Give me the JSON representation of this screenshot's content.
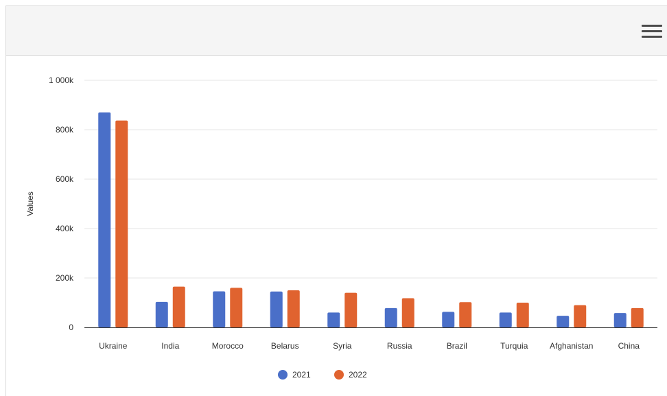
{
  "toolbar": {
    "menu_icon": "hamburger-menu-icon"
  },
  "chart_data": {
    "type": "bar",
    "ylabel": "Values",
    "xlabel": "",
    "ylim": [
      0,
      1000000
    ],
    "yticks": [
      0,
      200000,
      400000,
      600000,
      800000,
      1000000
    ],
    "ytick_labels": [
      "0",
      "200k",
      "400k",
      "600k",
      "800k",
      "1 000k"
    ],
    "categories": [
      "Ukraine",
      "India",
      "Morocco",
      "Belarus",
      "Syria",
      "Russia",
      "Brazil",
      "Turquia",
      "Afghanistan",
      "China"
    ],
    "series": [
      {
        "name": "2021",
        "color": "#4a6fc8",
        "values": [
          870000,
          103000,
          146000,
          145000,
          60000,
          78000,
          63000,
          60000,
          47000,
          58000
        ]
      },
      {
        "name": "2022",
        "color": "#e0632f",
        "values": [
          837000,
          165000,
          160000,
          150000,
          140000,
          118000,
          102000,
          100000,
          90000,
          78000
        ]
      }
    ],
    "grid": true,
    "legend_position": "bottom-center"
  }
}
